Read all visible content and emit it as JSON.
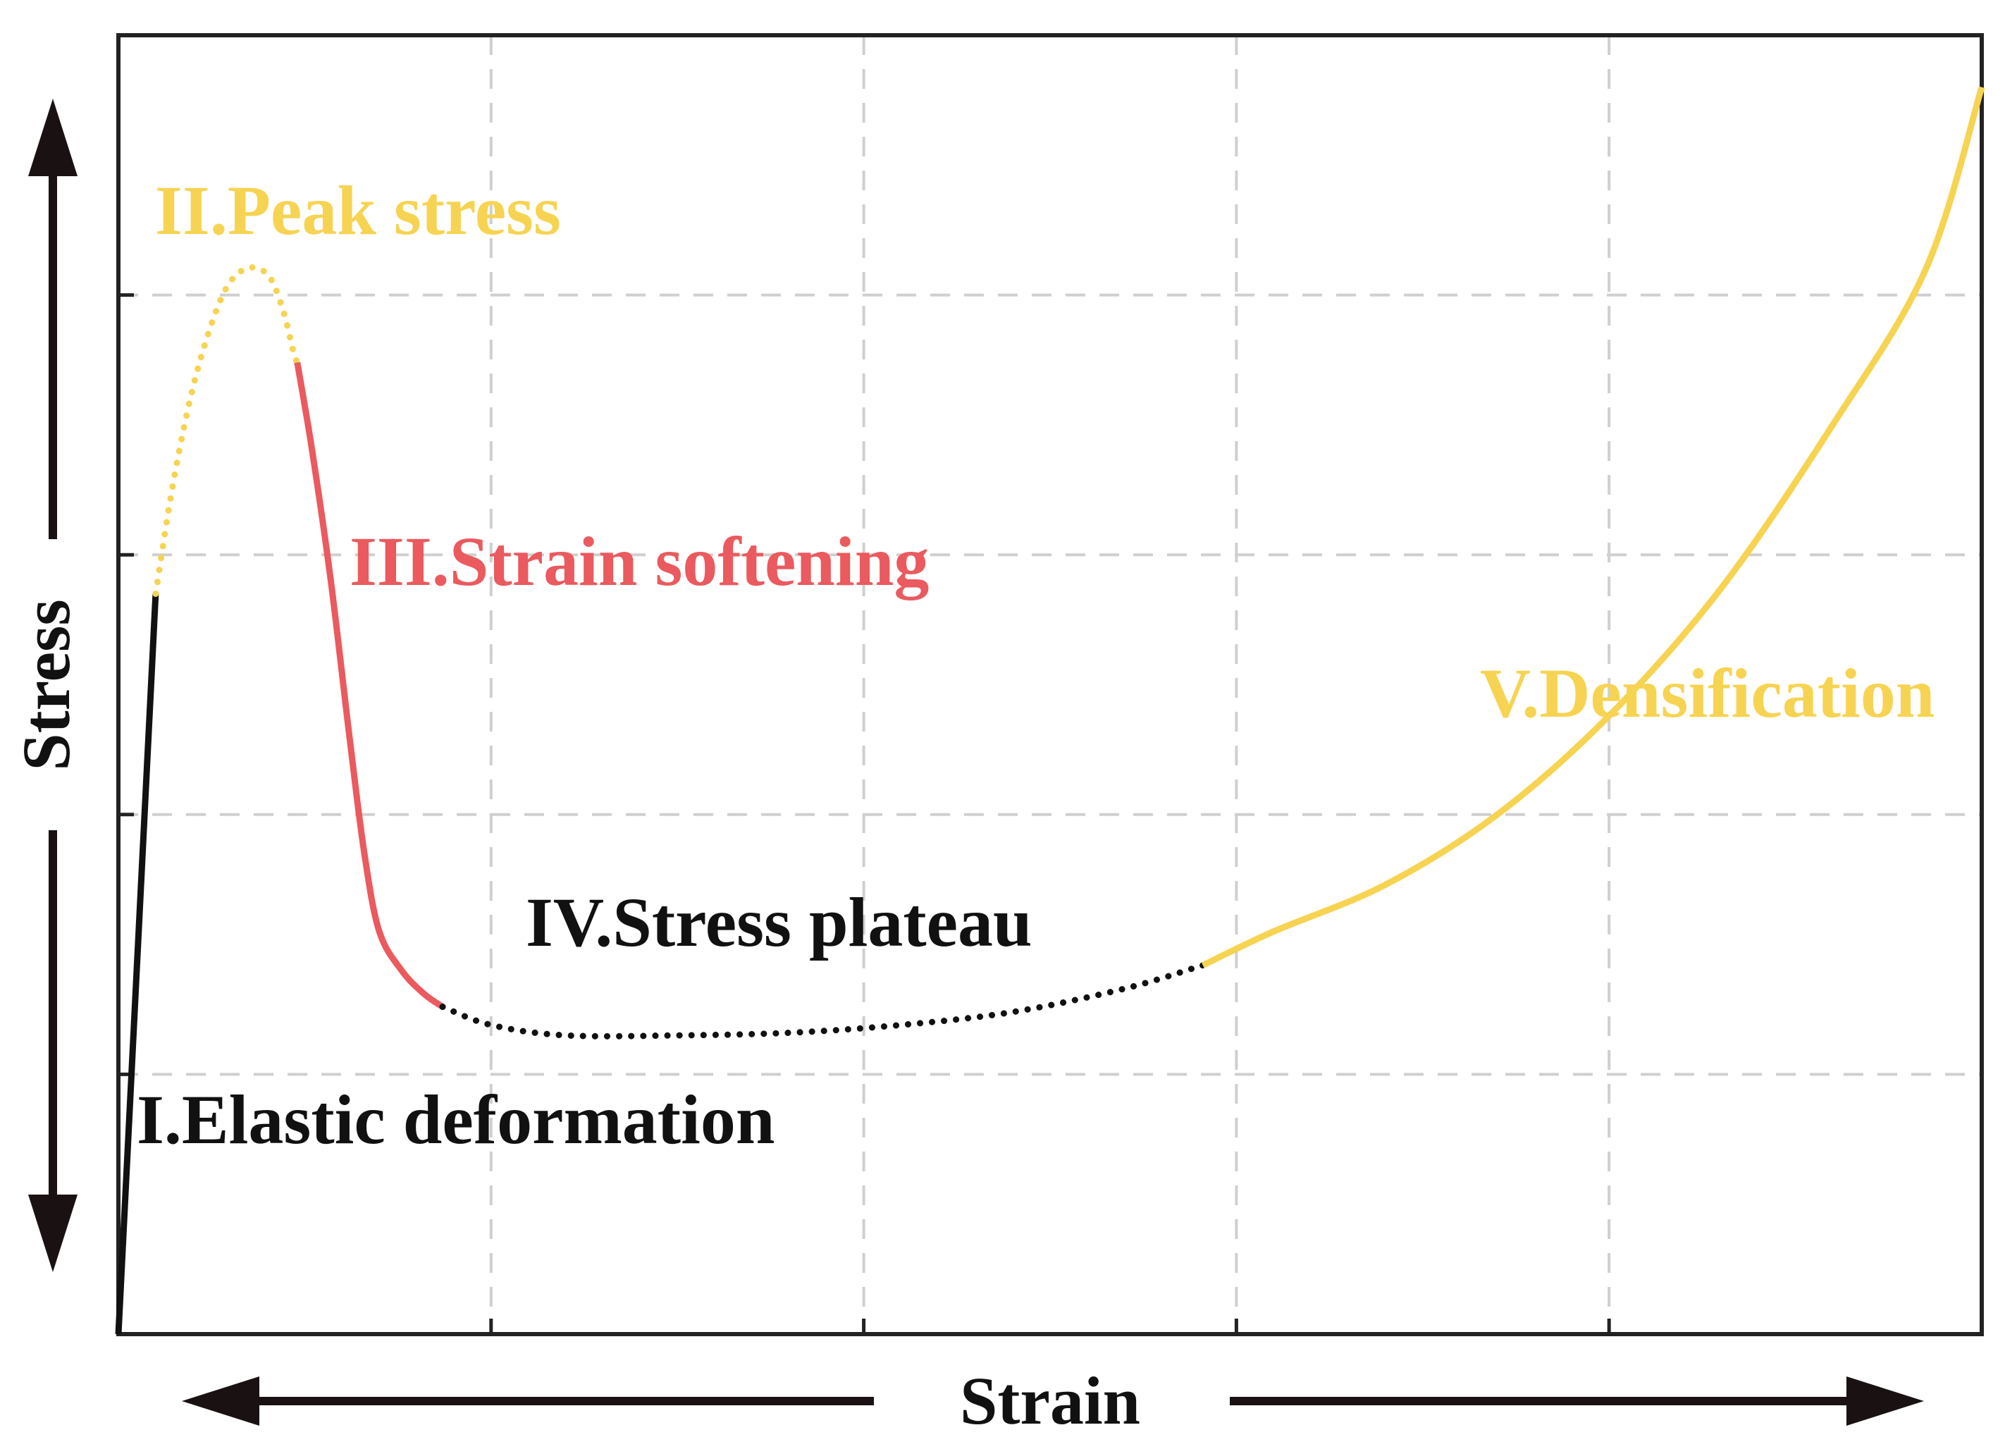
{
  "chart_data": {
    "type": "line",
    "title": "",
    "xlabel": "Strain",
    "ylabel": "Stress",
    "xlim": [
      0,
      5
    ],
    "ylim": [
      0,
      5
    ],
    "grid": true,
    "axis_ticks": {
      "x": [
        1,
        2,
        3,
        4
      ],
      "y": [
        1,
        2,
        3,
        4
      ]
    },
    "colors": {
      "black": "#111111",
      "yellow": "#f7d352",
      "red": "#ea5a5e",
      "grid": "#cfcfcf"
    },
    "series": [
      {
        "name": "I.Elastic deformation",
        "color": "#111111",
        "style": "solid",
        "label_color": "#111111",
        "points": [
          [
            0.0,
            0.0
          ],
          [
            0.1,
            2.85
          ]
        ]
      },
      {
        "name": "II.Peak stress",
        "color": "#f7d352",
        "style": "dotted",
        "label_color": "#f7d352",
        "points": [
          [
            0.1,
            2.85
          ],
          [
            0.15,
            3.3
          ],
          [
            0.21,
            3.7
          ],
          [
            0.28,
            4.0
          ],
          [
            0.34,
            4.1
          ],
          [
            0.4,
            4.08
          ],
          [
            0.44,
            3.95
          ],
          [
            0.47,
            3.78
          ],
          [
            0.48,
            3.74
          ]
        ]
      },
      {
        "name": "III.Strain softening",
        "color": "#ea5a5e",
        "style": "solid",
        "label_color": "#ea5a5e",
        "points": [
          [
            0.48,
            3.74
          ],
          [
            0.52,
            3.4
          ],
          [
            0.57,
            2.9
          ],
          [
            0.62,
            2.3
          ],
          [
            0.66,
            1.85
          ],
          [
            0.7,
            1.55
          ],
          [
            0.76,
            1.4
          ],
          [
            0.82,
            1.31
          ],
          [
            0.87,
            1.26
          ]
        ]
      },
      {
        "name": "IV.Stress plateau",
        "color": "#111111",
        "style": "dotted",
        "label_color": "#111111",
        "points": [
          [
            0.87,
            1.26
          ],
          [
            1.0,
            1.19
          ],
          [
            1.2,
            1.15
          ],
          [
            1.5,
            1.15
          ],
          [
            1.8,
            1.16
          ],
          [
            2.1,
            1.19
          ],
          [
            2.4,
            1.24
          ],
          [
            2.7,
            1.33
          ],
          [
            2.91,
            1.42
          ]
        ]
      },
      {
        "name": "V.Densification",
        "color": "#f7d352",
        "style": "solid",
        "label_color": "#f7d352",
        "points": [
          [
            2.91,
            1.42
          ],
          [
            3.1,
            1.55
          ],
          [
            3.4,
            1.73
          ],
          [
            3.7,
            2.0
          ],
          [
            4.0,
            2.38
          ],
          [
            4.3,
            2.87
          ],
          [
            4.6,
            3.5
          ],
          [
            4.85,
            4.1
          ],
          [
            5.0,
            4.8
          ]
        ]
      }
    ],
    "annotations": [
      {
        "text": "I.Elastic deformation",
        "series": 0,
        "color": "#111111"
      },
      {
        "text": "II.Peak stress",
        "series": 1,
        "color": "#f7d352"
      },
      {
        "text": "III.Strain softening",
        "series": 2,
        "color": "#ea5a5e"
      },
      {
        "text": "IV.Stress plateau",
        "series": 3,
        "color": "#111111"
      },
      {
        "text": "V.Densification",
        "series": 4,
        "color": "#f7d352"
      }
    ]
  }
}
